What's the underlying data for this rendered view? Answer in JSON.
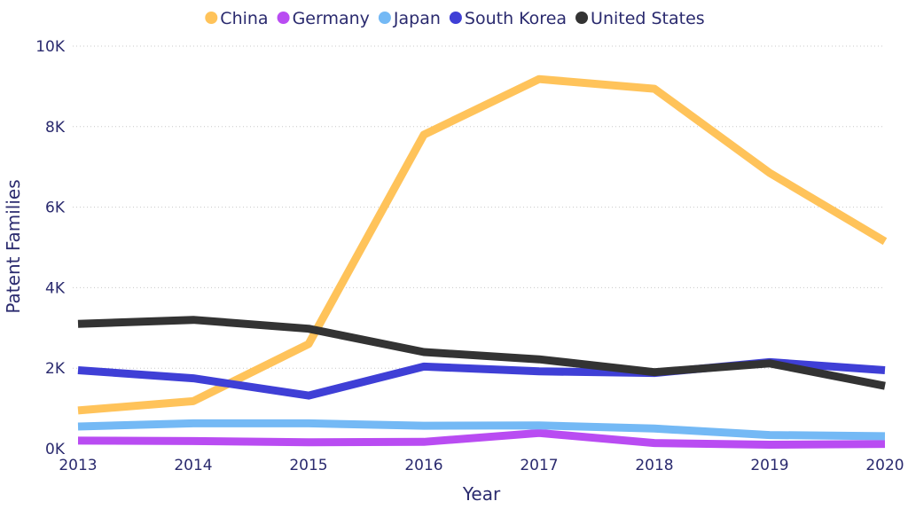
{
  "chart_data": {
    "type": "line",
    "x": [
      "2013",
      "2014",
      "2015",
      "2016",
      "2017",
      "2018",
      "2019",
      "2020"
    ],
    "xlabel": "Year",
    "ylabel": "Patent Families",
    "ylim": [
      0,
      10000
    ],
    "yticks": [
      0,
      2000,
      4000,
      6000,
      8000,
      10000
    ],
    "ytick_labels": [
      "0K",
      "2K",
      "4K",
      "6K",
      "8K",
      "10K"
    ],
    "grid": true,
    "legend_position": "top",
    "series": [
      {
        "name": "China",
        "color": "#FFC35A",
        "values": [
          950,
          1180,
          2600,
          7800,
          9180,
          8940,
          6850,
          5150
        ]
      },
      {
        "name": "Germany",
        "color": "#B94CF2",
        "values": [
          200,
          190,
          160,
          170,
          390,
          140,
          100,
          120
        ]
      },
      {
        "name": "Japan",
        "color": "#74B9F5",
        "values": [
          550,
          630,
          630,
          570,
          580,
          500,
          340,
          310
        ]
      },
      {
        "name": "South Korea",
        "color": "#3F3FD6",
        "values": [
          1950,
          1750,
          1320,
          2040,
          1920,
          1880,
          2150,
          1950
        ]
      },
      {
        "name": "United States",
        "color": "#333333",
        "values": [
          3100,
          3200,
          2980,
          2400,
          2220,
          1900,
          2120,
          1560
        ]
      }
    ]
  }
}
